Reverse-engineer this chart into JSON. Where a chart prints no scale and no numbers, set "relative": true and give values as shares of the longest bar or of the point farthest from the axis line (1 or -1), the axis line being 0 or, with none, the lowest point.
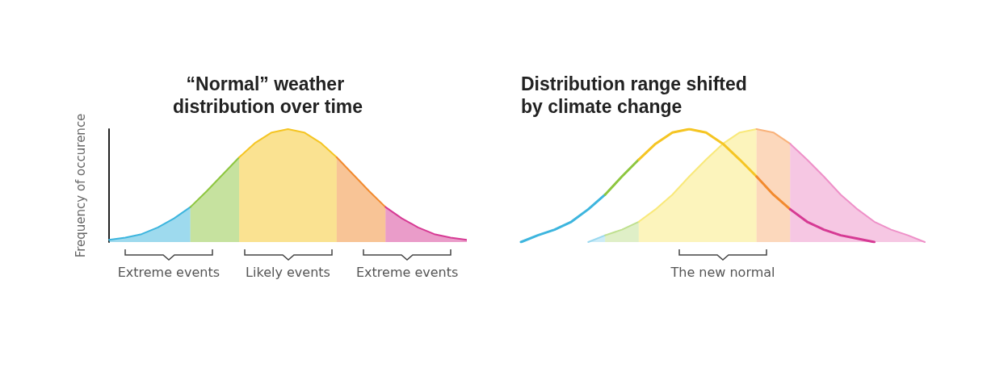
{
  "chart_data": [
    {
      "type": "area",
      "title": "“Normal” weather distribution over time",
      "ylabel": "Frequency of occurence",
      "relative": true,
      "marker": "none",
      "line_style": "solid",
      "categories": [
        null,
        null,
        null,
        null,
        null,
        null,
        null,
        null,
        null,
        null,
        null,
        null,
        null,
        null,
        null,
        null,
        null,
        null,
        null,
        null,
        null,
        null,
        null
      ],
      "series": [
        {
          "color": "#3db5de",
          "values": [
            0.02,
            0.04,
            0.07,
            0.13,
            0.21,
            0.31,
            null,
            null,
            null,
            null,
            null,
            null,
            null,
            null,
            null,
            null,
            null,
            null,
            null,
            null,
            null,
            null,
            null
          ]
        },
        {
          "color": "#8dc63f",
          "values": [
            null,
            null,
            null,
            null,
            null,
            0.31,
            0.45,
            0.6,
            0.75,
            null,
            null,
            null,
            null,
            null,
            null,
            null,
            null,
            null,
            null,
            null,
            null,
            null,
            null
          ]
        },
        {
          "color": "#f5c523",
          "values": [
            null,
            null,
            null,
            null,
            null,
            null,
            null,
            null,
            0.75,
            0.88,
            0.97,
            1,
            0.97,
            0.88,
            0.75,
            null,
            null,
            null,
            null,
            null,
            null,
            null,
            null
          ]
        },
        {
          "color": "#f28a2e",
          "values": [
            null,
            null,
            null,
            null,
            null,
            null,
            null,
            null,
            null,
            null,
            null,
            null,
            null,
            null,
            0.75,
            0.6,
            0.45,
            0.31,
            null,
            null,
            null,
            null,
            null
          ]
        },
        {
          "color": "#d63a94",
          "values": [
            null,
            null,
            null,
            null,
            null,
            null,
            null,
            null,
            null,
            null,
            null,
            null,
            null,
            null,
            null,
            null,
            null,
            0.31,
            0.21,
            0.13,
            0.07,
            0.04,
            0.02
          ]
        }
      ],
      "annotations": [
        "Extreme events",
        "Likely events",
        "Extreme events"
      ]
    },
    {
      "type": "area",
      "title": "Distribution range shifted by climate change",
      "relative": true,
      "marker": "none",
      "line_style": "solid",
      "categories": [
        null,
        null,
        null,
        null,
        null,
        null,
        null,
        null,
        null,
        null,
        null,
        null,
        null,
        null,
        null,
        null,
        null,
        null,
        null,
        null,
        null,
        null,
        null,
        null,
        null
      ],
      "series": [
        {
          "color": "#9ad8ef",
          "values": [
            null,
            null,
            null,
            null,
            0,
            0.06,
            null,
            null,
            null,
            null,
            null,
            null,
            null,
            null,
            null,
            null,
            null,
            null,
            null,
            null,
            null,
            null,
            null,
            null,
            null
          ]
        },
        {
          "color": "#bfe08f",
          "values": [
            null,
            null,
            null,
            null,
            null,
            0.06,
            0.11,
            0.18,
            null,
            null,
            null,
            null,
            null,
            null,
            null,
            null,
            null,
            null,
            null,
            null,
            null,
            null,
            null,
            null,
            null
          ]
        },
        {
          "color": "#f9e97a",
          "values": [
            null,
            null,
            null,
            null,
            null,
            null,
            null,
            0.18,
            0.29,
            0.42,
            0.58,
            0.73,
            0.87,
            0.97,
            1,
            null,
            null,
            null,
            null,
            null,
            null,
            null,
            null,
            null,
            null
          ]
        },
        {
          "color": "#f9b27a",
          "values": [
            null,
            null,
            null,
            null,
            null,
            null,
            null,
            null,
            null,
            null,
            null,
            null,
            null,
            null,
            1,
            0.97,
            0.87,
            null,
            null,
            null,
            null,
            null,
            null,
            null,
            null
          ]
        },
        {
          "color": "#ee90c8",
          "values": [
            null,
            null,
            null,
            null,
            null,
            null,
            null,
            null,
            null,
            null,
            null,
            null,
            null,
            null,
            null,
            null,
            0.87,
            0.73,
            0.58,
            0.42,
            0.29,
            0.18,
            0.11,
            0.06,
            0
          ]
        },
        {
          "type": "line",
          "color": "#3db5de",
          "values": [
            0,
            0.06,
            0.11,
            0.18,
            0.29,
            0.42,
            null,
            null,
            null,
            null,
            null,
            null,
            null,
            null,
            null,
            null,
            null,
            null,
            null,
            null,
            null,
            null,
            null,
            null,
            null
          ]
        },
        {
          "type": "line",
          "color": "#8dc63f",
          "values": [
            null,
            null,
            null,
            null,
            null,
            0.42,
            0.58,
            0.73,
            null,
            null,
            null,
            null,
            null,
            null,
            null,
            null,
            null,
            null,
            null,
            null,
            null,
            null,
            null,
            null,
            null
          ]
        },
        {
          "type": "line",
          "color": "#f5c523",
          "values": [
            null,
            null,
            null,
            null,
            null,
            null,
            null,
            0.73,
            0.87,
            0.97,
            1,
            0.97,
            0.87,
            0.73,
            0.58,
            null,
            null,
            null,
            null,
            null,
            null,
            null,
            null,
            null,
            null
          ]
        },
        {
          "type": "line",
          "color": "#f28a2e",
          "values": [
            null,
            null,
            null,
            null,
            null,
            null,
            null,
            null,
            null,
            null,
            null,
            null,
            null,
            null,
            0.58,
            0.42,
            0.29,
            null,
            null,
            null,
            null,
            null,
            null,
            null,
            null
          ]
        },
        {
          "type": "line",
          "color": "#d63a94",
          "values": [
            null,
            null,
            null,
            null,
            null,
            null,
            null,
            null,
            null,
            null,
            null,
            null,
            null,
            null,
            null,
            null,
            0.29,
            0.18,
            0.11,
            0.06,
            0.03,
            0,
            null,
            null,
            null
          ]
        }
      ],
      "annotations": [
        "The new normal"
      ]
    }
  ]
}
